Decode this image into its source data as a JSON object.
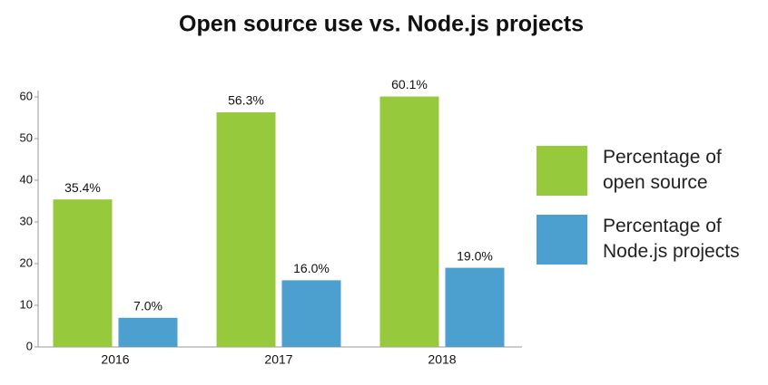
{
  "chart_data": {
    "type": "bar",
    "title": "Open source use vs. Node.js projects",
    "categories": [
      "2016",
      "2017",
      "2018"
    ],
    "series": [
      {
        "name": "Percentage of open source",
        "color": "#97c93c",
        "values": [
          35.4,
          56.3,
          60.1
        ],
        "value_labels": [
          "35.4%",
          "56.3%",
          "60.1%"
        ]
      },
      {
        "name": "Percentage of Node.js projects",
        "color": "#4ba0cf",
        "values": [
          7.0,
          16.0,
          19.0
        ],
        "value_labels": [
          "7.0%",
          "16.0%",
          "19.0%"
        ]
      }
    ],
    "ylim": [
      0,
      60
    ],
    "yticks": [
      0,
      10,
      20,
      30,
      40,
      50,
      60
    ],
    "grid": false,
    "legend": "right"
  }
}
